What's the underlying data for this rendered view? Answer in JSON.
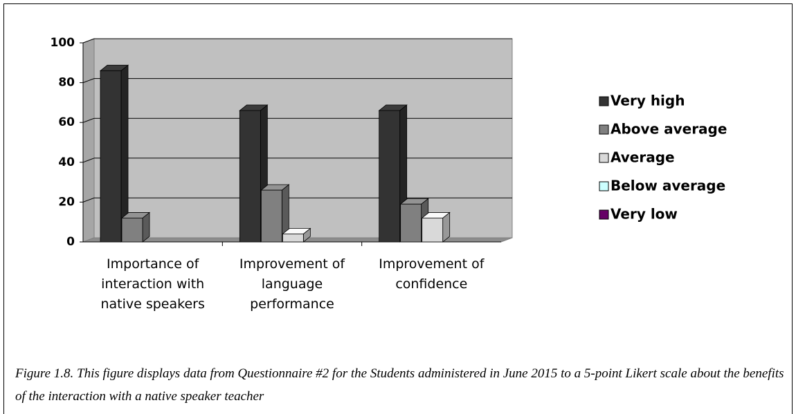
{
  "chart_data": {
    "type": "bar",
    "categories": [
      "Importance of interaction with native speakers",
      "Improvement of language performance",
      "Improvement of confidence"
    ],
    "series": [
      {
        "name": "Very high",
        "color": "#333333",
        "values": [
          86,
          66,
          66
        ]
      },
      {
        "name": "Above average",
        "color": "#808080",
        "values": [
          12,
          26,
          19
        ]
      },
      {
        "name": "Average",
        "color": "#d9d9d9",
        "values": [
          0,
          4,
          12
        ]
      },
      {
        "name": "Below average",
        "color": "#ccffff",
        "values": [
          0,
          0,
          0
        ]
      },
      {
        "name": "Very low",
        "color": "#660066",
        "values": [
          0,
          0,
          0
        ]
      }
    ],
    "ylim": [
      0,
      100
    ],
    "yticks": [
      0,
      20,
      40,
      60,
      80,
      100
    ],
    "grid": true,
    "legend": "right"
  },
  "caption": "Figure 1.8. This figure displays data from Questionnaire #2 for the Students administered in June 2015 to a 5-point Likert scale about the benefits of the interaction with a native speaker teacher"
}
